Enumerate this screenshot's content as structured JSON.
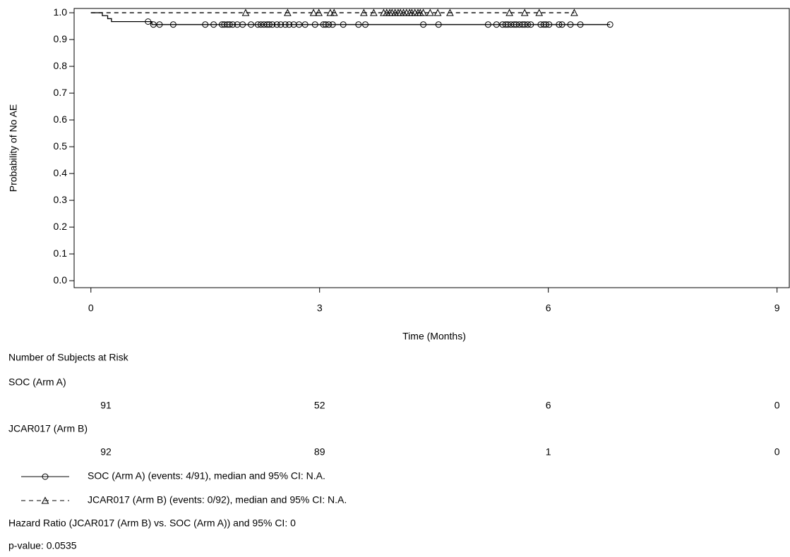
{
  "chart_data": {
    "type": "km",
    "y_label": "Probability of No AE",
    "x_label": "Time (Months)",
    "xlim": [
      -0.22,
      9.17
    ],
    "ylim": [
      -0.026,
      1.016
    ],
    "xticks": [
      0,
      3,
      6,
      9
    ],
    "yticks": [
      {
        "value": 1,
        "label": "1.0"
      },
      0.9,
      0.8,
      0.7,
      0.6,
      0.5,
      0.4,
      0.3,
      0.2,
      0.1,
      {
        "value": 0,
        "label": "0.0"
      }
    ],
    "series": [
      {
        "name": "SOC (Arm A)",
        "color": "#000000",
        "dash": false,
        "marker": "circle",
        "legend_label": "SOC (Arm A) (events: 4/91), median and 95% CI: N.A.",
        "times": [
          0,
          0.15,
          0.22,
          0.27,
          0.8,
          6.81
        ],
        "survival": [
          1,
          0.989,
          0.978,
          0.967,
          0.956,
          0.956
        ],
        "censor_times": [
          0.75,
          0.82,
          0.9,
          1.08,
          1.5,
          1.61,
          1.72,
          1.75,
          1.79,
          1.82,
          1.86,
          1.92,
          1.99,
          2.1,
          2.19,
          2.23,
          2.27,
          2.31,
          2.34,
          2.38,
          2.44,
          2.49,
          2.55,
          2.6,
          2.66,
          2.73,
          2.81,
          2.94,
          3.05,
          3.08,
          3.12,
          3.17,
          3.31,
          3.51,
          3.6,
          4.36,
          4.56,
          5.21,
          5.32,
          5.4,
          5.44,
          5.47,
          5.51,
          5.55,
          5.58,
          5.62,
          5.66,
          5.69,
          5.73,
          5.77,
          5.9,
          5.94,
          5.97,
          6.01,
          6.14,
          6.18,
          6.29,
          6.42,
          6.81
        ],
        "censor_values": [
          0.967,
          0.956,
          0.956,
          0.956,
          0.956,
          0.956,
          0.956,
          0.956,
          0.956,
          0.956,
          0.956,
          0.956,
          0.956,
          0.956,
          0.956,
          0.956,
          0.956,
          0.956,
          0.956,
          0.956,
          0.956,
          0.956,
          0.956,
          0.956,
          0.956,
          0.956,
          0.956,
          0.956,
          0.956,
          0.956,
          0.956,
          0.956,
          0.956,
          0.956,
          0.956,
          0.956,
          0.956,
          0.956,
          0.956,
          0.956,
          0.956,
          0.956,
          0.956,
          0.956,
          0.956,
          0.956,
          0.956,
          0.956,
          0.956,
          0.956,
          0.956,
          0.956,
          0.956,
          0.956,
          0.956,
          0.956,
          0.956,
          0.956,
          0.956
        ],
        "at_risk": [
          91,
          52,
          6,
          0
        ]
      },
      {
        "name": "JCAR017 (Arm B)",
        "color": "#000000",
        "dash": true,
        "marker": "triangle",
        "legend_label": "JCAR017 (Arm B) (events: 0/92), median and 95% CI: N.A.",
        "times": [
          0,
          6.34
        ],
        "survival": [
          1,
          1
        ],
        "censor_times": [
          2.03,
          2.58,
          2.92,
          2.99,
          3.14,
          3.19,
          3.58,
          3.71,
          3.84,
          3.88,
          3.92,
          3.95,
          3.99,
          4.03,
          4.06,
          4.1,
          4.14,
          4.18,
          4.21,
          4.25,
          4.29,
          4.32,
          4.36,
          4.45,
          4.55,
          4.71,
          5.49,
          5.69,
          5.88,
          6.34
        ],
        "censor_values": [
          1,
          1,
          1,
          1,
          1,
          1,
          1,
          1,
          1,
          1,
          1,
          1,
          1,
          1,
          1,
          1,
          1,
          1,
          1,
          1,
          1,
          1,
          1,
          1,
          1,
          1,
          1,
          1,
          1,
          1
        ],
        "at_risk": [
          92,
          89,
          1,
          0
        ]
      }
    ],
    "at_risk_title": "Number of Subjects at Risk",
    "footnotes": [
      "Hazard Ratio (JCAR017 (Arm B) vs. SOC (Arm A)) and 95% CI: 0",
      "p-value: 0.0535"
    ]
  }
}
